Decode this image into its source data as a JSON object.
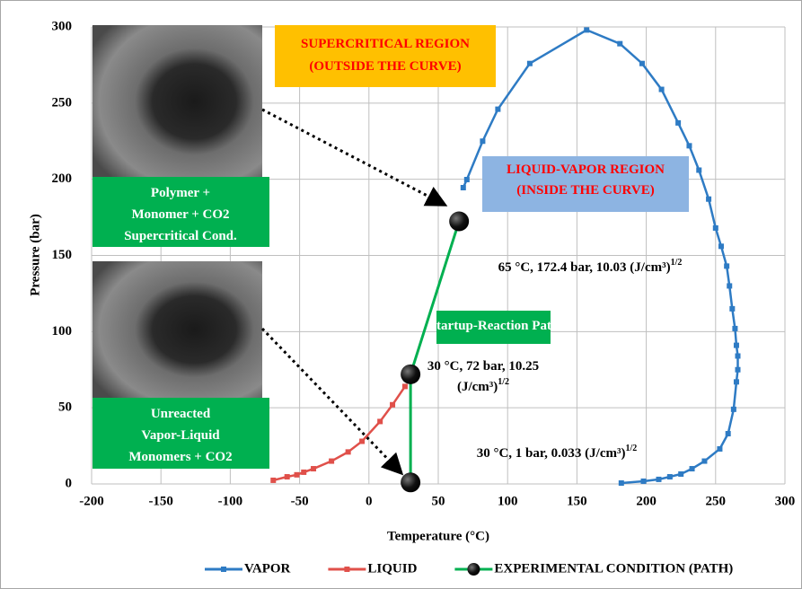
{
  "chart_data": {
    "type": "line",
    "xlabel": "Temperature (°C)",
    "ylabel": "Pressure  (bar)",
    "xlim": [
      -200,
      300
    ],
    "xticks": [
      -200,
      -150,
      -100,
      -50,
      0,
      50,
      100,
      150,
      200,
      250,
      300
    ],
    "ylim": [
      0,
      300
    ],
    "yticks": [
      0,
      50,
      100,
      150,
      200,
      250,
      300
    ],
    "grid": true,
    "legend": "bottom",
    "series": [
      {
        "name": "VAPOR",
        "color": "#2e7bc4",
        "marker": "square",
        "x": [
          68,
          70.6,
          82,
          93,
          116,
          157,
          181,
          197,
          211,
          223,
          231,
          238,
          245,
          250,
          254,
          258,
          260,
          262,
          264,
          265,
          266,
          266,
          265,
          263,
          259,
          253,
          242,
          233,
          225,
          217,
          209,
          198,
          182
        ],
        "values": [
          194.5,
          199.8,
          225,
          246,
          276,
          298,
          289,
          276,
          259,
          237,
          222,
          206,
          187,
          168,
          156,
          143,
          130,
          115,
          102,
          91,
          84,
          75,
          67,
          49,
          33,
          23,
          15,
          10,
          6.5,
          4.7,
          3,
          1.8,
          0.6
        ]
      },
      {
        "name": "LIQUID",
        "color": "#e0504a",
        "marker": "square",
        "x": [
          -69,
          -59,
          -52,
          -47,
          -40,
          -27,
          -15,
          -5,
          8,
          17,
          26
        ],
        "values": [
          2.4,
          4.7,
          6,
          7.7,
          10,
          15,
          21,
          28,
          41,
          52,
          64
        ]
      },
      {
        "name": "EXPERIMENTAL CONDITION (PATH)",
        "color": "#00b050",
        "marker": "circle",
        "x": [
          30,
          30,
          65
        ],
        "values": [
          1,
          72,
          172.4
        ]
      }
    ],
    "annotations": [
      {
        "lines": [
          {
            "text": "SUPERCRITICAL REGION"
          },
          {
            "text": "(OUTSIDE THE CURVE)"
          }
        ],
        "box_color": "#ffc000",
        "text_color": "#ff0000"
      },
      {
        "lines": [
          {
            "text": "LIQUID-VAPOR REGION"
          },
          {
            "text": "(INSIDE THE CURVE)"
          }
        ],
        "box_color": "#8db4e2",
        "text_color": "#ff0000"
      },
      {
        "lines": [
          {
            "text": "Polymer +"
          },
          {
            "text": "Monomer + CO2"
          },
          {
            "text": "Supercritical Cond."
          }
        ],
        "box_color": "#00b050",
        "text_color": "#ffffff"
      },
      {
        "lines": [
          {
            "text": "Unreacted"
          },
          {
            "text": "Vapor-Liquid"
          },
          {
            "text": "Monomers + CO2"
          }
        ],
        "box_color": "#00b050",
        "text_color": "#ffffff"
      },
      {
        "lines": [
          {
            "text": "Startup-Reaction Path"
          }
        ],
        "box_color": "#00b050",
        "text_color": "#ffffff"
      },
      {
        "lines": [
          {
            "text": "65 °C, 172.4 bar, 10.03 (J/cm³)",
            "sup": "1/2"
          }
        ],
        "text_color": "#000000"
      },
      {
        "lines": [
          {
            "text": "30 °C, 72 bar, 10.25"
          },
          {
            "text": "(J/cm³)",
            "sup": "1/2"
          }
        ],
        "text_color": "#000000"
      },
      {
        "lines": [
          {
            "text": "30 °C, 1 bar, 0.033 (J/cm³)",
            "sup": "1/2"
          }
        ],
        "text_color": "#000000"
      }
    ]
  }
}
